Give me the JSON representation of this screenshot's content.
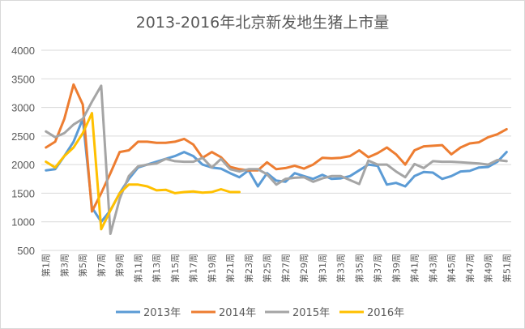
{
  "chart_data": {
    "type": "line",
    "title": "2013-2016年北京新发地生猪上市量",
    "xlabel": "",
    "ylabel": "",
    "ylim": [
      500,
      4000
    ],
    "yticks": [
      500,
      1000,
      1500,
      2000,
      2500,
      3000,
      3500,
      4000
    ],
    "grid": true,
    "legend_position": "bottom",
    "categories": [
      "第1周",
      "第2周",
      "第3周",
      "第4周",
      "第5周",
      "第6周",
      "第7周",
      "第8周",
      "第9周",
      "第10周",
      "第11周",
      "第12周",
      "第13周",
      "第14周",
      "第15周",
      "第16周",
      "第17周",
      "第18周",
      "第19周",
      "第20周",
      "第21周",
      "第22周",
      "第23周",
      "第24周",
      "第25周",
      "第26周",
      "第27周",
      "第28周",
      "第29周",
      "第30周",
      "第31周",
      "第32周",
      "第33周",
      "第34周",
      "第35周",
      "第36周",
      "第37周",
      "第38周",
      "第39周",
      "第40周",
      "第41周",
      "第42周",
      "第43周",
      "第44周",
      "第45周",
      "第46周",
      "第47周",
      "第48周",
      "第49周",
      "第50周",
      "第51周"
    ],
    "x_tick_labels": [
      "第1周",
      "第3周",
      "第5周",
      "第7周",
      "第9周",
      "第11周",
      "第13周",
      "第15周",
      "第17周",
      "第19周",
      "第21周",
      "第23周",
      "第25周",
      "第27周",
      "第29周",
      "第31周",
      "第33周",
      "第35周",
      "第37周",
      "第39周",
      "第41周",
      "第43周",
      "第45周",
      "第47周",
      "第49周",
      "第51周"
    ],
    "series": [
      {
        "name": "2013年",
        "color": "#5B9BD5",
        "values": [
          1900,
          1920,
          2150,
          2400,
          2800,
          1250,
          1000,
          1200,
          1500,
          1750,
          1950,
          2000,
          2050,
          2100,
          2150,
          2220,
          2150,
          2000,
          1950,
          1930,
          1850,
          1780,
          1900,
          1620,
          1850,
          1720,
          1700,
          1850,
          1800,
          1750,
          1820,
          1750,
          1760,
          1800,
          1900,
          2000,
          1980,
          1650,
          1680,
          1620,
          1800,
          1870,
          1860,
          1750,
          1800,
          1880,
          1890,
          1950,
          1960,
          2050,
          2220
        ]
      },
      {
        "name": "2014年",
        "color": "#ED7D31",
        "values": [
          2300,
          2400,
          2800,
          3400,
          3050,
          1180,
          1500,
          1850,
          2220,
          2250,
          2400,
          2400,
          2380,
          2380,
          2400,
          2450,
          2350,
          2120,
          2220,
          2130,
          1960,
          1920,
          1900,
          1900,
          2040,
          1920,
          1940,
          1980,
          1930,
          2000,
          2120,
          2110,
          2120,
          2150,
          2250,
          2130,
          2200,
          2300,
          2180,
          2000,
          2250,
          2320,
          2330,
          2340,
          2180,
          2300,
          2370,
          2390,
          2480,
          2530,
          2620
        ]
      },
      {
        "name": "2015年",
        "color": "#A5A5A5",
        "values": [
          2580,
          2480,
          2550,
          2700,
          2800,
          3100,
          3380,
          790,
          1400,
          1800,
          1970,
          2000,
          2020,
          2100,
          2060,
          2050,
          2050,
          2120,
          1950,
          2100,
          1920,
          1880,
          1920,
          1920,
          1830,
          1650,
          1750,
          1770,
          1780,
          1700,
          1760,
          1800,
          1800,
          1730,
          1660,
          2070,
          2000,
          2000,
          1880,
          1780,
          2010,
          1940,
          2060,
          2050,
          2050,
          2040,
          2030,
          2020,
          2000,
          2080,
          2060
        ]
      },
      {
        "name": "2016年",
        "color": "#FFC000",
        "values": [
          2050,
          1950,
          2150,
          2300,
          2550,
          2900,
          870,
          1200,
          1500,
          1650,
          1650,
          1620,
          1550,
          1560,
          1500,
          1520,
          1530,
          1510,
          1520,
          1570,
          1520,
          1520,
          null,
          null,
          null,
          null,
          null,
          null,
          null,
          null,
          null,
          null,
          null,
          null,
          null,
          null,
          null,
          null,
          null,
          null,
          null,
          null,
          null,
          null,
          null,
          null,
          null,
          null,
          null,
          null,
          null
        ]
      }
    ]
  }
}
